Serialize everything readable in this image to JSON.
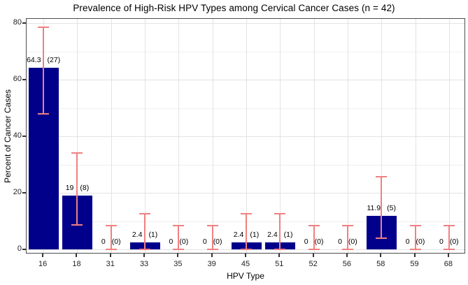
{
  "title": "Prevalence of High-Risk HPV Types among Cervical Cancer Cases (n = 42)",
  "chart_data": {
    "type": "bar",
    "title": "Prevalence of High-Risk HPV Types among Cervical Cancer Cases (n = 42)",
    "xlabel": "HPV Type",
    "ylabel": "Percent of Cancer Cases",
    "n_total": 42,
    "ylim": [
      0,
      80
    ],
    "y_major_ticks": [
      0,
      20,
      40,
      60,
      80
    ],
    "y_minor_ticks": [
      10,
      30,
      50,
      70
    ],
    "grid": true,
    "legend": "none",
    "bar_color": "#00008B",
    "error_bar_color": "#F08080",
    "categories": [
      "16",
      "18",
      "31",
      "33",
      "35",
      "39",
      "45",
      "51",
      "52",
      "56",
      "58",
      "59",
      "68"
    ],
    "points": [
      {
        "hpv_type": "16",
        "percent": 64.3,
        "count": 27,
        "label": "64.3",
        "count_label": "(27)",
        "ci_low": 48.0,
        "ci_high": 78.5
      },
      {
        "hpv_type": "18",
        "percent": 19,
        "count": 8,
        "label": "19",
        "count_label": "(8)",
        "ci_low": 8.6,
        "ci_high": 34.1
      },
      {
        "hpv_type": "31",
        "percent": 0,
        "count": 0,
        "label": "0",
        "count_label": "(0)",
        "ci_low": 0,
        "ci_high": 8.4
      },
      {
        "hpv_type": "33",
        "percent": 2.4,
        "count": 1,
        "label": "2.4",
        "count_label": "(1)",
        "ci_low": 0.1,
        "ci_high": 12.6
      },
      {
        "hpv_type": "35",
        "percent": 0,
        "count": 0,
        "label": "0",
        "count_label": "(0)",
        "ci_low": 0,
        "ci_high": 8.4
      },
      {
        "hpv_type": "39",
        "percent": 0,
        "count": 0,
        "label": "0",
        "count_label": "(0)",
        "ci_low": 0,
        "ci_high": 8.4
      },
      {
        "hpv_type": "45",
        "percent": 2.4,
        "count": 1,
        "label": "2.4",
        "count_label": "(1)",
        "ci_low": 0.1,
        "ci_high": 12.6
      },
      {
        "hpv_type": "51",
        "percent": 2.4,
        "count": 1,
        "label": "2.4",
        "count_label": "(1)",
        "ci_low": 0.1,
        "ci_high": 12.6
      },
      {
        "hpv_type": "52",
        "percent": 0,
        "count": 0,
        "label": "0",
        "count_label": "(0)",
        "ci_low": 0,
        "ci_high": 8.4
      },
      {
        "hpv_type": "56",
        "percent": 0,
        "count": 0,
        "label": "0",
        "count_label": "(0)",
        "ci_low": 0,
        "ci_high": 8.4
      },
      {
        "hpv_type": "58",
        "percent": 11.9,
        "count": 5,
        "label": "11.9",
        "count_label": "(5)",
        "ci_low": 4.0,
        "ci_high": 25.6
      },
      {
        "hpv_type": "59",
        "percent": 0,
        "count": 0,
        "label": "0",
        "count_label": "(0)",
        "ci_low": 0,
        "ci_high": 8.4
      },
      {
        "hpv_type": "68",
        "percent": 0,
        "count": 0,
        "label": "0",
        "count_label": "(0)",
        "ci_low": 0,
        "ci_high": 8.4
      }
    ]
  }
}
